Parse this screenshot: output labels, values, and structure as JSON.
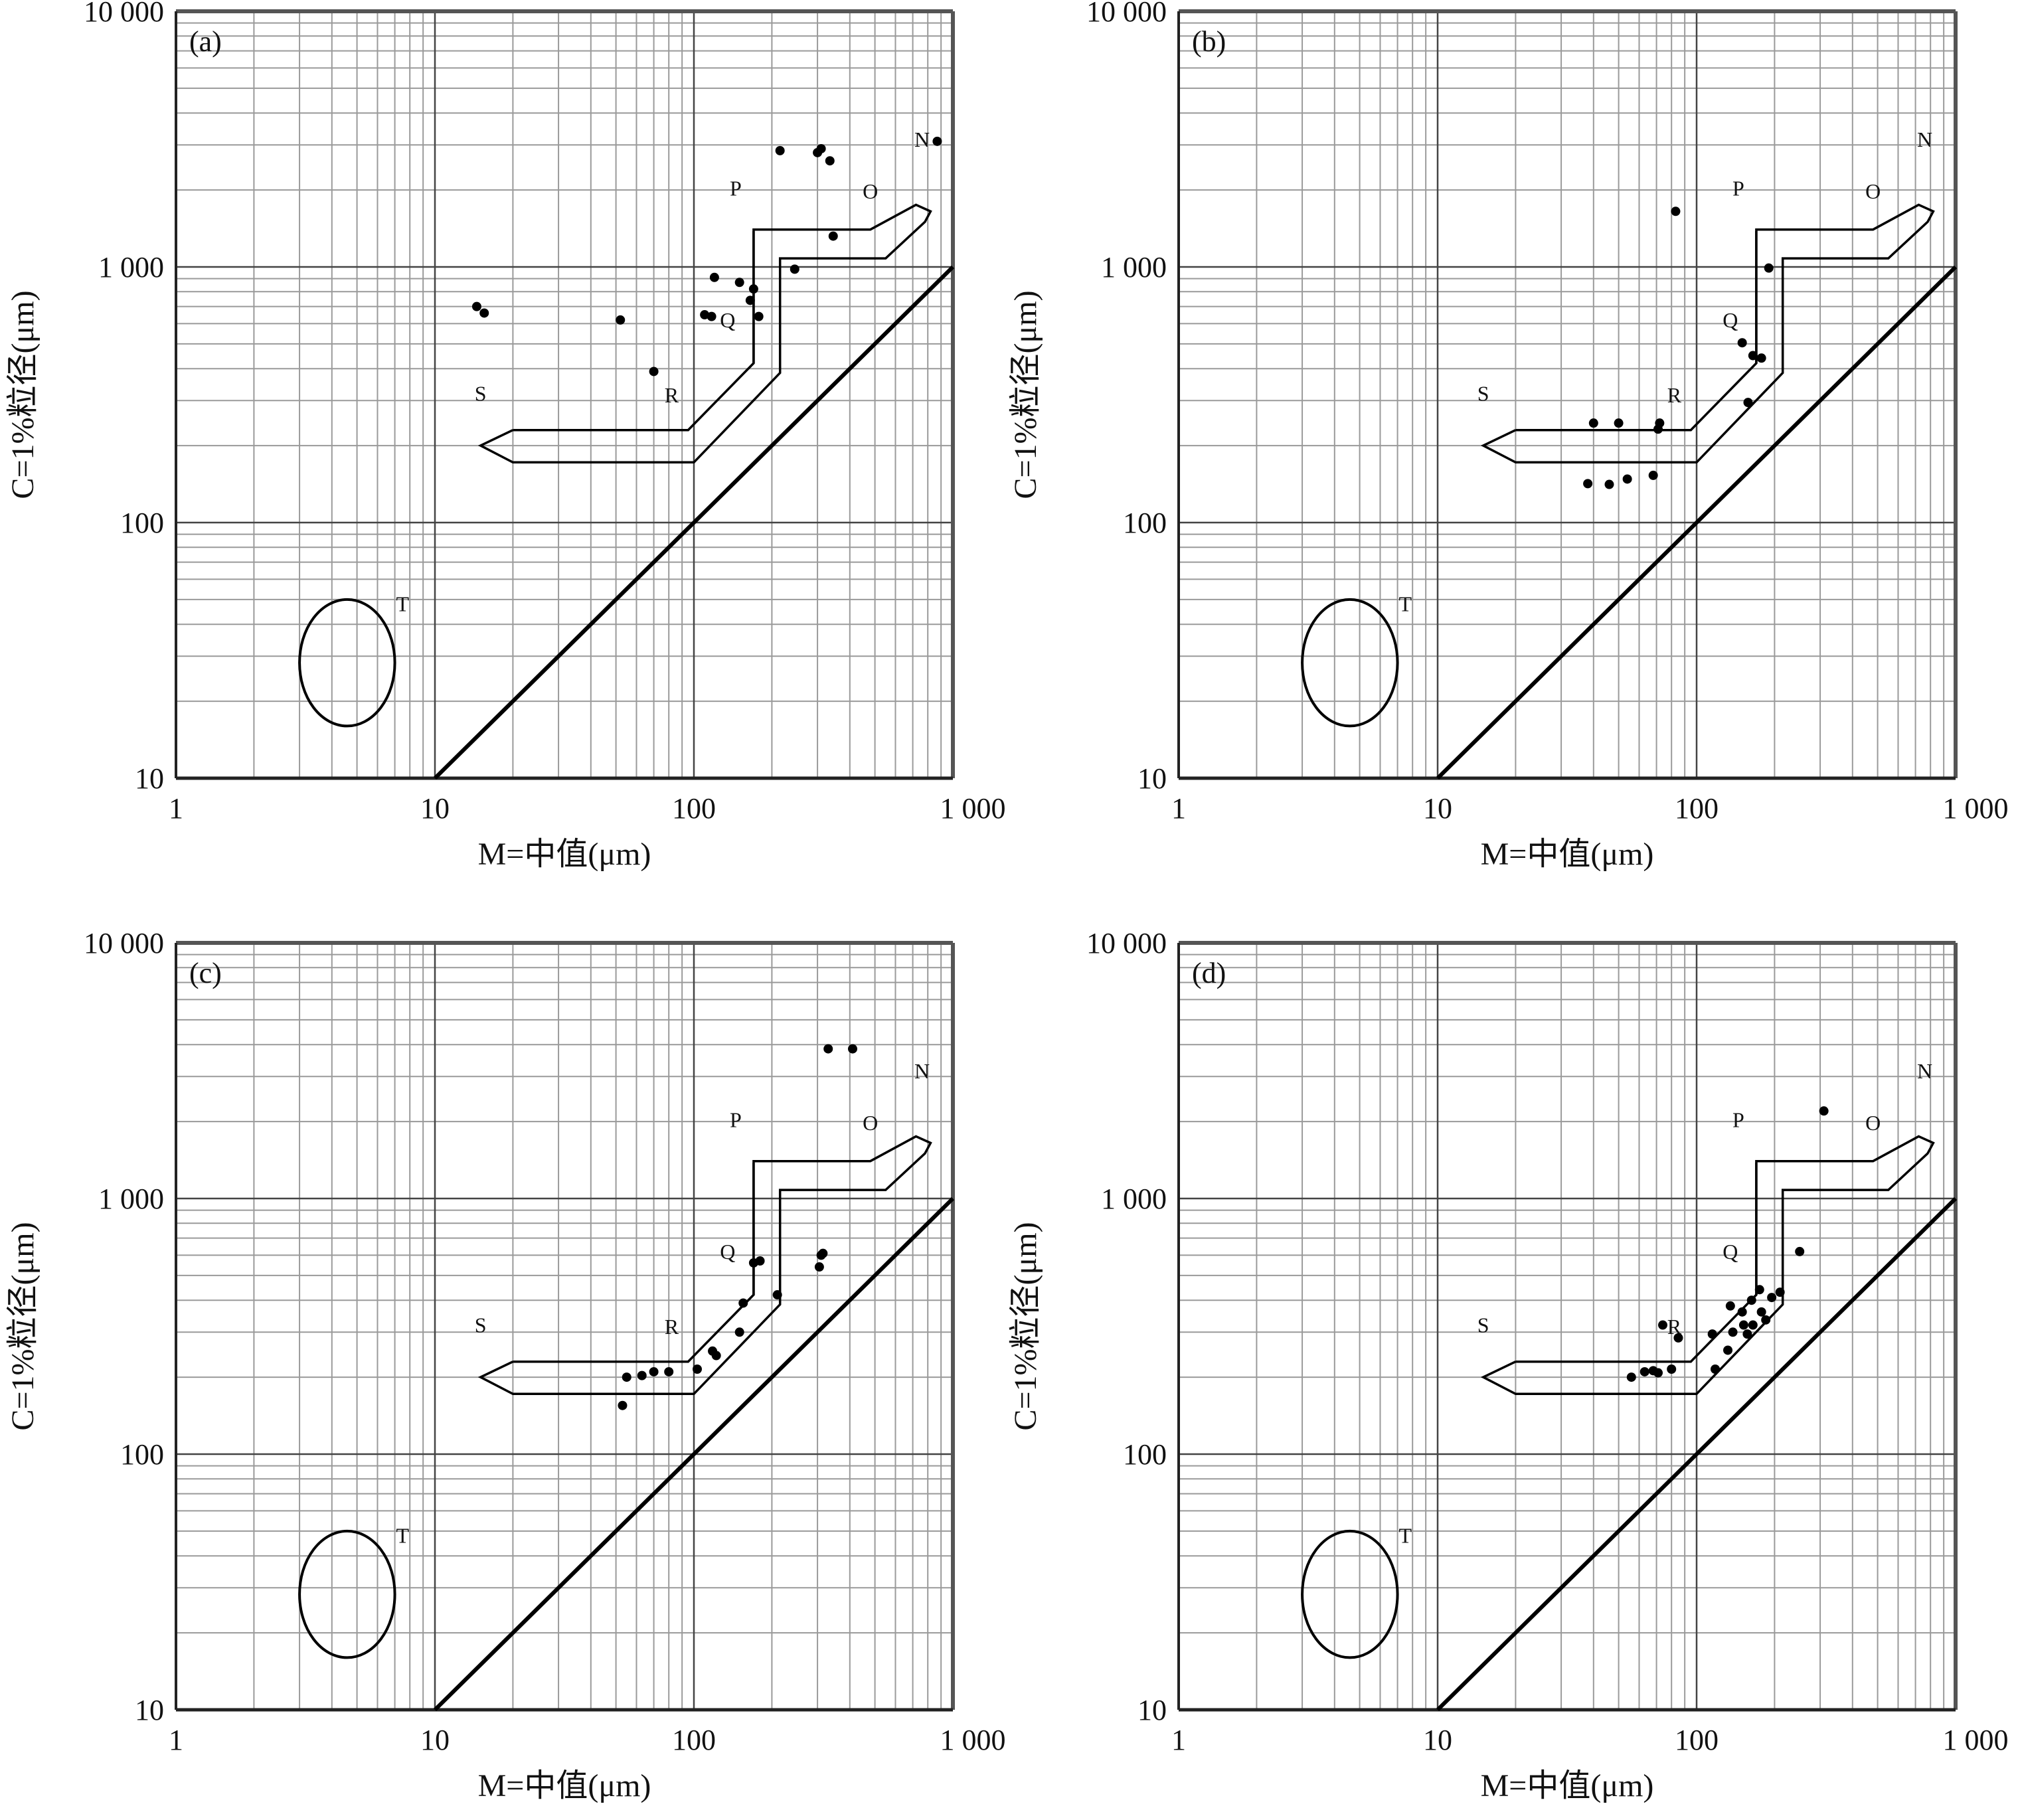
{
  "chart_data": [
    {
      "type": "scatter",
      "panel_label": "(a)",
      "xlabel": "M=中值(μm)",
      "ylabel": "C=1%粒径(μm)",
      "xscale": "log",
      "yscale": "log",
      "xlim": [
        1,
        1000
      ],
      "ylim": [
        10,
        10000
      ],
      "x_tick_labels": [
        "1",
        "10",
        "100",
        "1 000"
      ],
      "y_tick_labels": [
        "10",
        "100",
        "1 000",
        "10 000"
      ],
      "region_labels": [
        "N",
        "O",
        "P",
        "Q",
        "R",
        "S",
        "T"
      ],
      "grid": true,
      "points": [
        {
          "x": 14.5,
          "y": 700
        },
        {
          "x": 15.5,
          "y": 660
        },
        {
          "x": 52,
          "y": 620
        },
        {
          "x": 70,
          "y": 390
        },
        {
          "x": 110,
          "y": 650
        },
        {
          "x": 117,
          "y": 640
        },
        {
          "x": 120,
          "y": 910
        },
        {
          "x": 150,
          "y": 870
        },
        {
          "x": 165,
          "y": 740
        },
        {
          "x": 170,
          "y": 820
        },
        {
          "x": 178,
          "y": 640
        },
        {
          "x": 215,
          "y": 2850
        },
        {
          "x": 245,
          "y": 980
        },
        {
          "x": 300,
          "y": 2800
        },
        {
          "x": 310,
          "y": 2900
        },
        {
          "x": 335,
          "y": 2600
        },
        {
          "x": 345,
          "y": 1320
        },
        {
          "x": 870,
          "y": 3100
        }
      ]
    },
    {
      "type": "scatter",
      "panel_label": "(b)",
      "xlabel": "M=中值(μm)",
      "ylabel": "C=1%粒径(μm)",
      "xscale": "log",
      "yscale": "log",
      "xlim": [
        1,
        1000
      ],
      "ylim": [
        10,
        10000
      ],
      "x_tick_labels": [
        "1",
        "10",
        "100",
        "1 000"
      ],
      "y_tick_labels": [
        "10",
        "100",
        "1 000",
        "10 000"
      ],
      "region_labels": [
        "N",
        "O",
        "P",
        "Q",
        "R",
        "S",
        "T"
      ],
      "grid": true,
      "points": [
        {
          "x": 38,
          "y": 142
        },
        {
          "x": 40,
          "y": 245
        },
        {
          "x": 46,
          "y": 141
        },
        {
          "x": 50,
          "y": 245
        },
        {
          "x": 54,
          "y": 148
        },
        {
          "x": 68,
          "y": 153
        },
        {
          "x": 71,
          "y": 232
        },
        {
          "x": 72,
          "y": 245
        },
        {
          "x": 83,
          "y": 1650
        },
        {
          "x": 150,
          "y": 505
        },
        {
          "x": 158,
          "y": 295
        },
        {
          "x": 165,
          "y": 450
        },
        {
          "x": 178,
          "y": 440
        },
        {
          "x": 190,
          "y": 990
        }
      ]
    },
    {
      "type": "scatter",
      "panel_label": "(c)",
      "xlabel": "M=中值(μm)",
      "ylabel": "C=1%粒径(μm)",
      "xscale": "log",
      "yscale": "log",
      "xlim": [
        1,
        1000
      ],
      "ylim": [
        10,
        10000
      ],
      "x_tick_labels": [
        "1",
        "10",
        "100",
        "1 000"
      ],
      "y_tick_labels": [
        "10",
        "100",
        "1 000",
        "10 000"
      ],
      "region_labels": [
        "N",
        "O",
        "P",
        "Q",
        "R",
        "S",
        "T"
      ],
      "grid": true,
      "points": [
        {
          "x": 53,
          "y": 155
        },
        {
          "x": 55,
          "y": 200
        },
        {
          "x": 63,
          "y": 203
        },
        {
          "x": 70,
          "y": 210
        },
        {
          "x": 80,
          "y": 210
        },
        {
          "x": 103,
          "y": 215
        },
        {
          "x": 118,
          "y": 253
        },
        {
          "x": 122,
          "y": 243
        },
        {
          "x": 150,
          "y": 300
        },
        {
          "x": 155,
          "y": 390
        },
        {
          "x": 170,
          "y": 560
        },
        {
          "x": 180,
          "y": 570
        },
        {
          "x": 210,
          "y": 420
        },
        {
          "x": 305,
          "y": 540
        },
        {
          "x": 310,
          "y": 600
        },
        {
          "x": 315,
          "y": 610
        },
        {
          "x": 330,
          "y": 3850
        },
        {
          "x": 410,
          "y": 3850
        }
      ]
    },
    {
      "type": "scatter",
      "panel_label": "(d)",
      "xlabel": "M=中值(μm)",
      "ylabel": "C=1%粒径(μm)",
      "xscale": "log",
      "yscale": "log",
      "xlim": [
        1,
        1000
      ],
      "ylim": [
        10,
        10000
      ],
      "x_tick_labels": [
        "1",
        "10",
        "100",
        "1 000"
      ],
      "y_tick_labels": [
        "10",
        "100",
        "1 000",
        "10 000"
      ],
      "region_labels": [
        "N",
        "O",
        "P",
        "Q",
        "R",
        "S",
        "T"
      ],
      "grid": true,
      "points": [
        {
          "x": 56,
          "y": 200
        },
        {
          "x": 63,
          "y": 210
        },
        {
          "x": 68,
          "y": 212
        },
        {
          "x": 71,
          "y": 208
        },
        {
          "x": 74,
          "y": 320
        },
        {
          "x": 80,
          "y": 215
        },
        {
          "x": 85,
          "y": 285
        },
        {
          "x": 115,
          "y": 295
        },
        {
          "x": 118,
          "y": 215
        },
        {
          "x": 132,
          "y": 255
        },
        {
          "x": 135,
          "y": 380
        },
        {
          "x": 138,
          "y": 300
        },
        {
          "x": 150,
          "y": 360
        },
        {
          "x": 152,
          "y": 320
        },
        {
          "x": 157,
          "y": 295
        },
        {
          "x": 163,
          "y": 400
        },
        {
          "x": 165,
          "y": 320
        },
        {
          "x": 175,
          "y": 440
        },
        {
          "x": 178,
          "y": 360
        },
        {
          "x": 185,
          "y": 335
        },
        {
          "x": 195,
          "y": 410
        },
        {
          "x": 210,
          "y": 430
        },
        {
          "x": 250,
          "y": 620
        },
        {
          "x": 310,
          "y": 2200
        }
      ]
    }
  ]
}
